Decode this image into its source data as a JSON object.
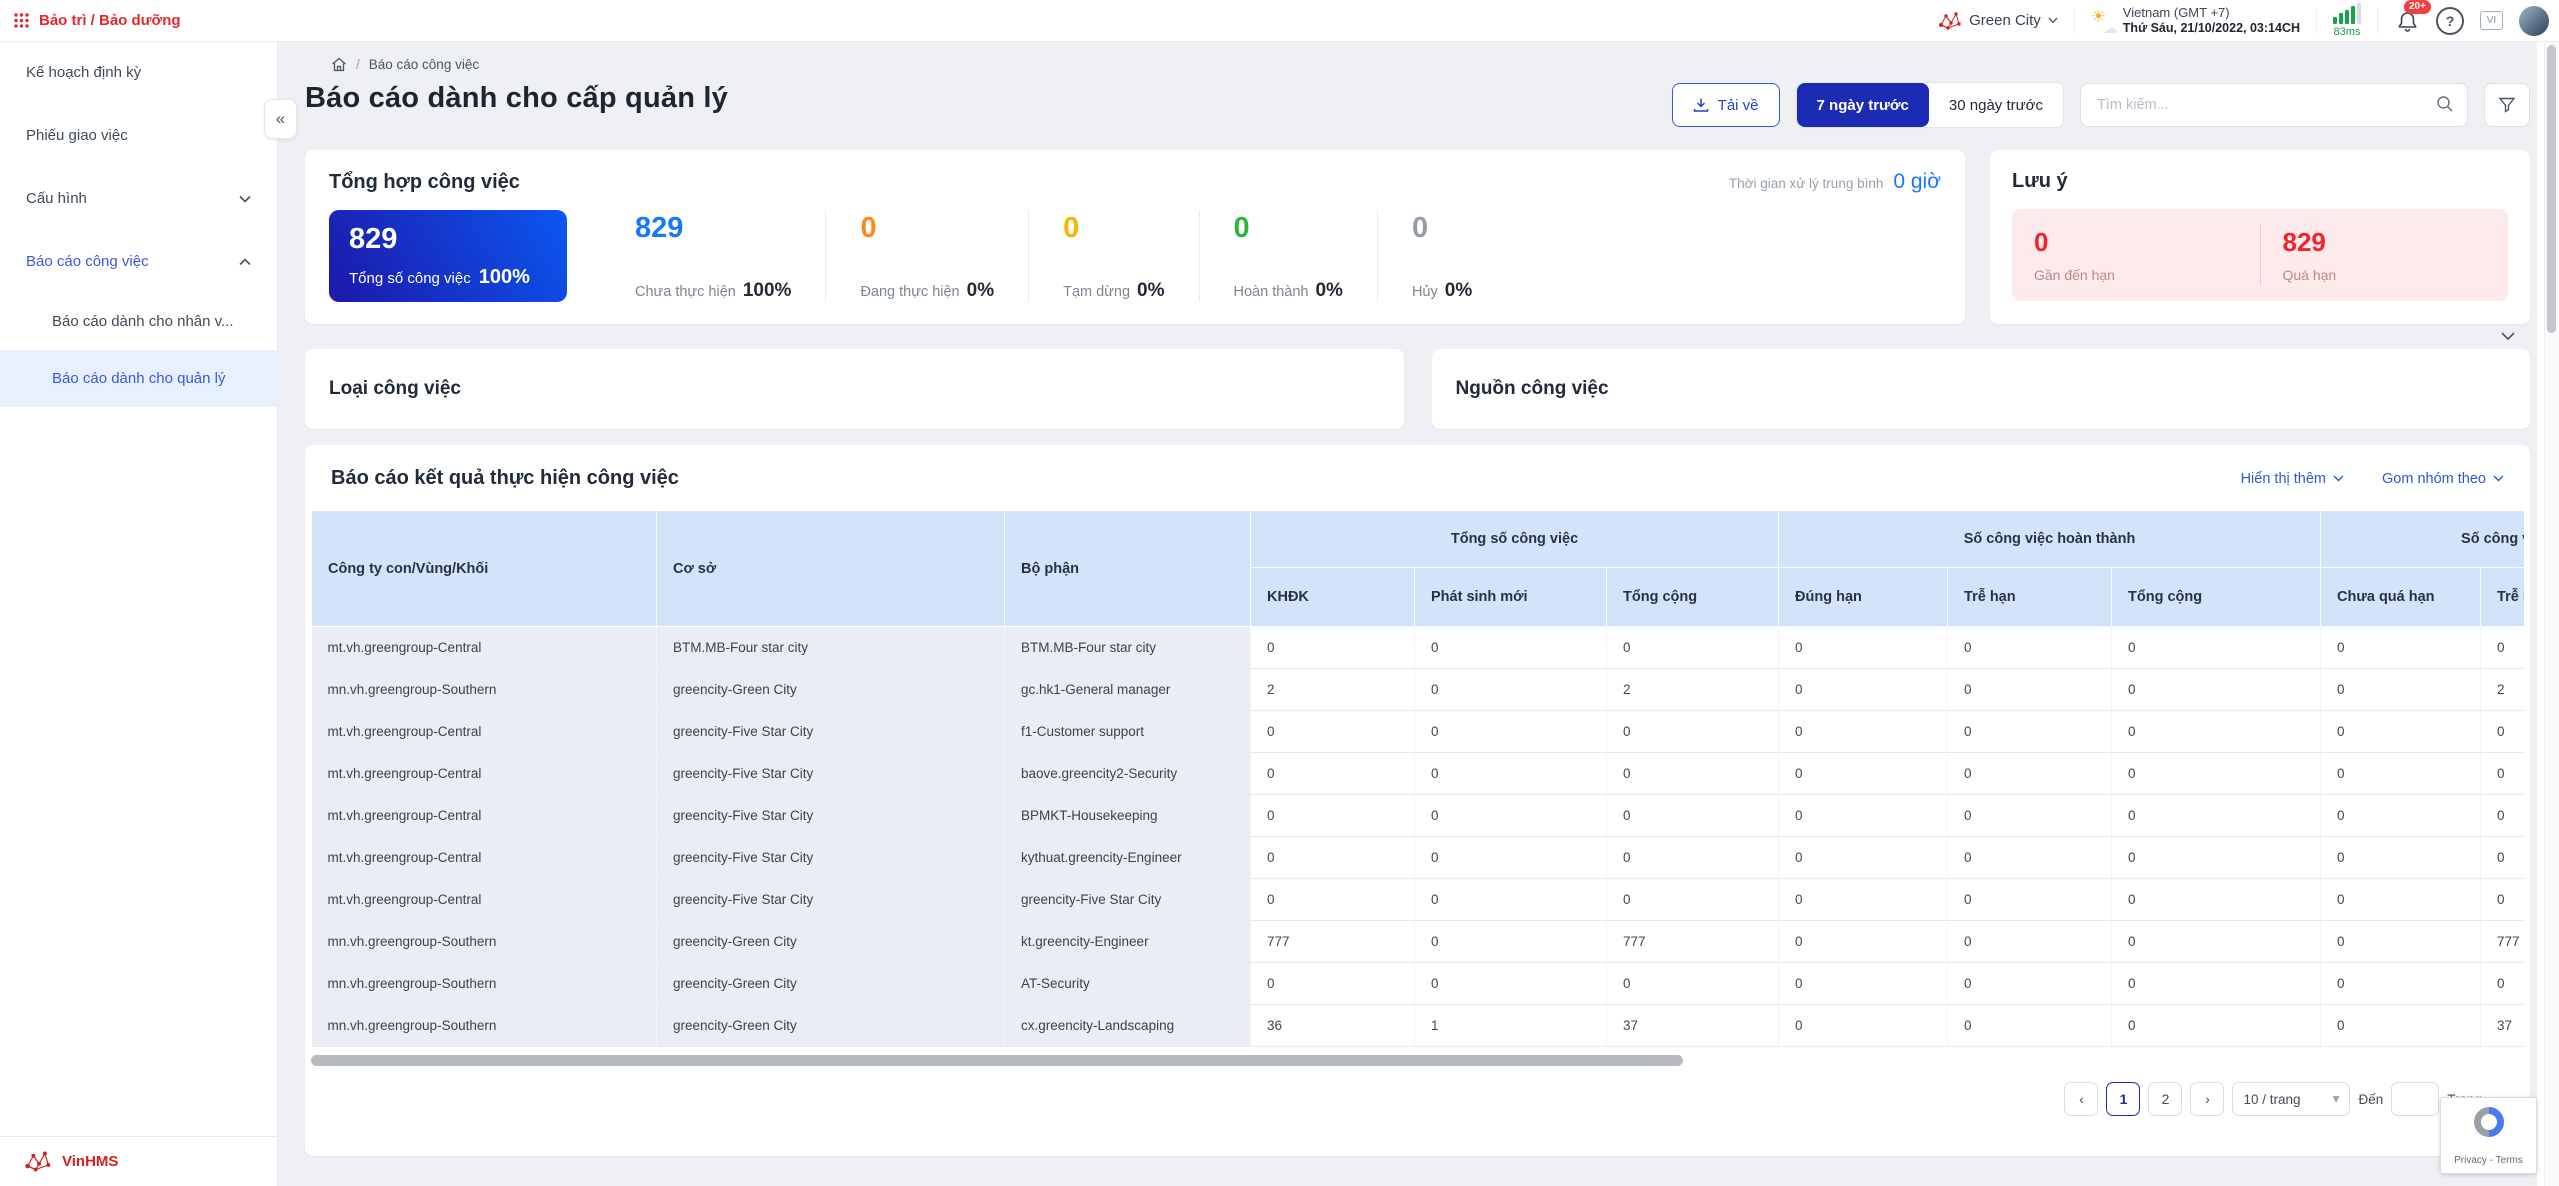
{
  "app": {
    "title": "Bảo trì / Bảo dưỡng"
  },
  "colors": {
    "brand_red": "#e02a2f",
    "primary_blue": "#1c2bb3",
    "link_blue": "#3056d3",
    "table_header_bg": "#d3e4fa",
    "danger_red": "#f5222d"
  },
  "topbar": {
    "property": "Green City",
    "timezone": "Vietnam (GMT +7)",
    "datetime": "Thứ Sáu, 21/10/2022, 03:14CH",
    "latency": "83ms",
    "notifications_badge": "20+",
    "language": "VI"
  },
  "sidebar": {
    "items": [
      {
        "label": "Kế hoạch định kỳ"
      },
      {
        "label": "Phiếu giao việc"
      },
      {
        "label": "Cấu hình"
      },
      {
        "label": "Báo cáo công việc"
      }
    ],
    "subitems": [
      {
        "label": "Báo cáo dành cho nhân v..."
      },
      {
        "label": "Báo cáo dành cho quản lý"
      }
    ],
    "footer": "VinHMS"
  },
  "breadcrumb": {
    "current": "Báo cáo công việc"
  },
  "page_title": "Báo cáo dành cho cấp quản lý",
  "toolbar": {
    "download": "Tải về",
    "range_7d": "7 ngày trước",
    "range_30d": "30 ngày trước",
    "search_placeholder": "Tìm kiếm..."
  },
  "summary": {
    "title": "Tổng hợp công việc",
    "avg_label": "Thời gian xử lý trung bình",
    "avg_value": "0 giờ",
    "total": {
      "value": "829",
      "label": "Tổng số công việc",
      "percent": "100%"
    },
    "stats": [
      {
        "value": "829",
        "label": "Chưa thực hiện",
        "percent": "100%",
        "color": "#1677ff"
      },
      {
        "value": "0",
        "label": "Đang thực hiện",
        "percent": "0%",
        "color": "#fa8c16"
      },
      {
        "value": "0",
        "label": "Tạm dừng",
        "percent": "0%",
        "color": "#f7b500"
      },
      {
        "value": "0",
        "label": "Hoàn thành",
        "percent": "0%",
        "color": "#2db53a"
      },
      {
        "value": "0",
        "label": "Hủy",
        "percent": "0%",
        "color": "#949ca7"
      }
    ]
  },
  "attention": {
    "title": "Lưu ý",
    "items": [
      {
        "value": "0",
        "label": "Gần đến hạn"
      },
      {
        "value": "829",
        "label": "Quá hạn"
      }
    ]
  },
  "charts": [
    {
      "title": "Loại công việc"
    },
    {
      "title": "Nguồn công việc"
    }
  ],
  "report": {
    "title": "Báo cáo kết quả thực hiện công việc",
    "show_more": "Hiển thị thêm",
    "group_by": "Gom nhóm theo",
    "table": {
      "fixed_columns": [
        "Công ty con/Vùng/Khối",
        "Cơ sở",
        "Bộ phận"
      ],
      "groups": [
        {
          "label": "Tổng số công việc",
          "columns": [
            "KHĐK",
            "Phát sinh mới",
            "Tổng cộng"
          ]
        },
        {
          "label": "Số công việc hoàn thành",
          "columns": [
            "Đúng hạn",
            "Trễ hạn",
            "Tổng cộng"
          ]
        },
        {
          "label": "Số công việc",
          "columns": [
            "Chưa quá hạn",
            "Trễ hạn"
          ]
        }
      ],
      "rows": [
        [
          "mt.vh.greengroup-Central",
          "BTM.MB-Four star city",
          "BTM.MB-Four star city",
          "0",
          "0",
          "0",
          "0",
          "0",
          "0",
          "0",
          "0"
        ],
        [
          "mn.vh.greengroup-Southern",
          "greencity-Green City",
          "gc.hk1-General manager",
          "2",
          "0",
          "2",
          "0",
          "0",
          "0",
          "0",
          "2"
        ],
        [
          "mt.vh.greengroup-Central",
          "greencity-Five Star City",
          "f1-Customer support",
          "0",
          "0",
          "0",
          "0",
          "0",
          "0",
          "0",
          "0"
        ],
        [
          "mt.vh.greengroup-Central",
          "greencity-Five Star City",
          "baove.greencity2-Security",
          "0",
          "0",
          "0",
          "0",
          "0",
          "0",
          "0",
          "0"
        ],
        [
          "mt.vh.greengroup-Central",
          "greencity-Five Star City",
          "BPMKT-Housekeeping",
          "0",
          "0",
          "0",
          "0",
          "0",
          "0",
          "0",
          "0"
        ],
        [
          "mt.vh.greengroup-Central",
          "greencity-Five Star City",
          "kythuat.greencity-Engineer",
          "0",
          "0",
          "0",
          "0",
          "0",
          "0",
          "0",
          "0"
        ],
        [
          "mt.vh.greengroup-Central",
          "greencity-Five Star City",
          "greencity-Five Star City",
          "0",
          "0",
          "0",
          "0",
          "0",
          "0",
          "0",
          "0"
        ],
        [
          "mn.vh.greengroup-Southern",
          "greencity-Green City",
          "kt.greencity-Engineer",
          "777",
          "0",
          "777",
          "0",
          "0",
          "0",
          "0",
          "777"
        ],
        [
          "mn.vh.greengroup-Southern",
          "greencity-Green City",
          "AT-Security",
          "0",
          "0",
          "0",
          "0",
          "0",
          "0",
          "0",
          "0"
        ],
        [
          "mn.vh.greengroup-Southern",
          "greencity-Green City",
          "cx.greencity-Landscaping",
          "36",
          "1",
          "37",
          "0",
          "0",
          "0",
          "0",
          "37"
        ]
      ]
    }
  },
  "pagination": {
    "pages": [
      "1",
      "2"
    ],
    "active_page": "1",
    "page_size": "10 / trang",
    "goto_label": "Đến",
    "page_label": "Trang"
  },
  "recaptcha": "Privacy - Terms"
}
